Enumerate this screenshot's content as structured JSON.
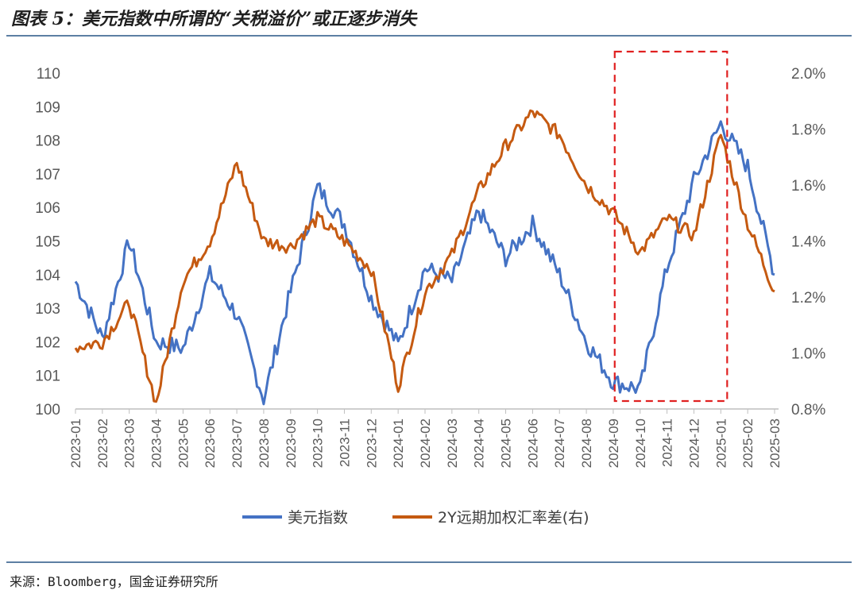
{
  "header": {
    "title": "图表 5：美元指数中所谓的“关税溢价”或正逐步消失"
  },
  "footer": {
    "source": "来源：Bloomberg，国金证券研究所"
  },
  "chart_data": {
    "type": "line",
    "x": [
      "2023-01",
      "2023-02",
      "2023-03",
      "2023-04",
      "2023-05",
      "2023-06",
      "2023-07",
      "2023-08",
      "2023-09",
      "2023-10",
      "2023-11",
      "2023-12",
      "2024-01",
      "2024-02",
      "2024-03",
      "2024-04",
      "2024-05",
      "2024-06",
      "2024-07",
      "2024-08",
      "2024-09",
      "2024-10",
      "2024-11",
      "2024-12",
      "2025-01",
      "2025-02",
      "2025-03"
    ],
    "ylim_left": [
      100,
      110
    ],
    "yticks_left": [
      "100",
      "101",
      "102",
      "103",
      "104",
      "105",
      "106",
      "107",
      "108",
      "109",
      "110"
    ],
    "ylim_right": [
      0.8,
      2.0
    ],
    "yticks_right": [
      "0.8%",
      "1.0%",
      "1.2%",
      "1.4%",
      "1.6%",
      "1.8%",
      "2.0%"
    ],
    "series": [
      {
        "name": "美元指数",
        "axis": "left",
        "color": "#4472c4",
        "values": [
          103.8,
          102.1,
          105.0,
          102.0,
          101.8,
          104.0,
          102.8,
          100.3,
          103.5,
          106.6,
          105.5,
          103.3,
          101.9,
          104.2,
          103.8,
          105.9,
          104.5,
          105.5,
          104.0,
          102.0,
          100.8,
          100.6,
          104.2,
          106.8,
          108.5,
          107.2,
          104.0
        ]
      },
      {
        "name": "2Y远期加权汇率差(右)",
        "axis": "right",
        "color": "#c55a11",
        "values": [
          1.02,
          1.04,
          1.18,
          0.82,
          1.26,
          1.4,
          1.68,
          1.4,
          1.38,
          1.48,
          1.4,
          1.3,
          0.88,
          1.22,
          1.35,
          1.58,
          1.74,
          1.86,
          1.78,
          1.6,
          1.5,
          1.36,
          1.48,
          1.42,
          1.78,
          1.46,
          1.22
        ]
      }
    ],
    "annotation": {
      "type": "dashed-box",
      "color": "#e02020",
      "x_from": "2024-10",
      "x_to": "2025-01"
    }
  },
  "colors": {
    "dxy": "#4472c4",
    "spread": "#c55a11",
    "highlight": "#e02020",
    "rule": "#5d7fa3"
  }
}
